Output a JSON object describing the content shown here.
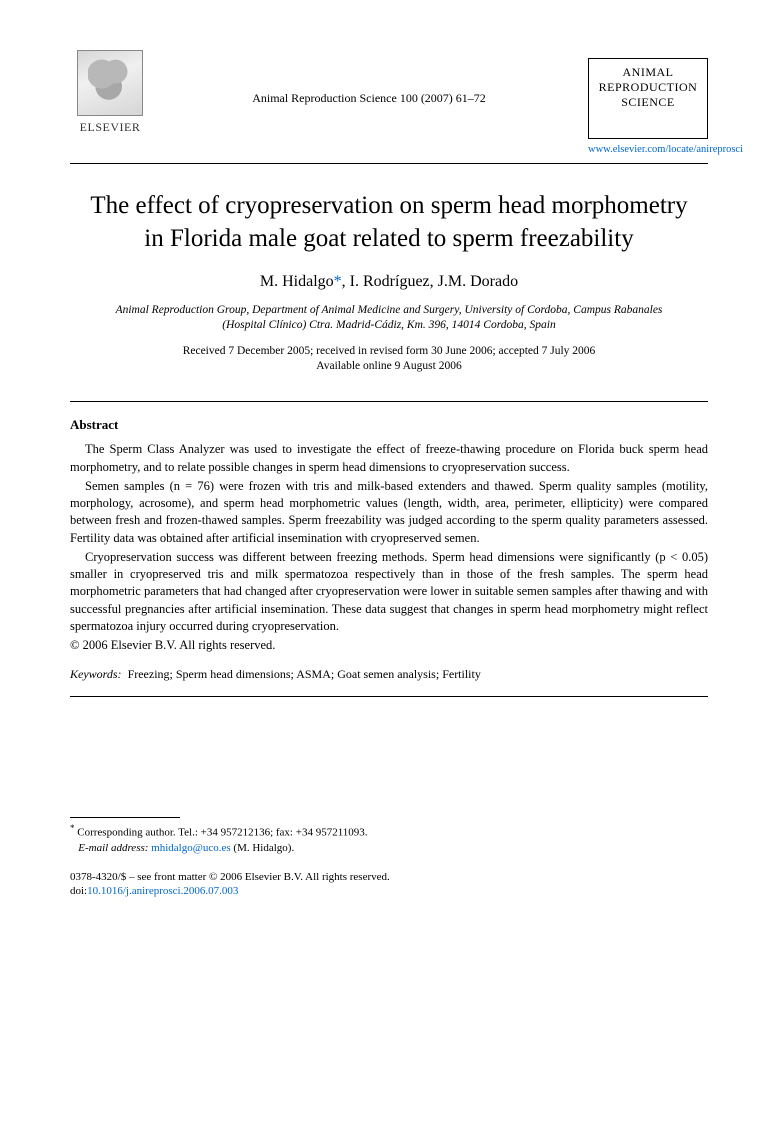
{
  "publisher": {
    "logo_label": "ELSEVIER"
  },
  "journal_ref": "Animal Reproduction Science 100 (2007) 61–72",
  "journal_box": {
    "line1": "ANIMAL",
    "line2": "REPRODUCTION",
    "line3": "SCIENCE"
  },
  "journal_url": "www.elsevier.com/locate/anireprosci",
  "title": "The effect of cryopreservation on sperm head morphometry in Florida male goat related to sperm freezability",
  "authors_html": "M. Hidalgo *, I. Rodríguez, J.M. Dorado",
  "authors": {
    "a1": "M. Hidalgo",
    "star": "*",
    "a2": "I. Rodríguez",
    "a3": "J.M. Dorado"
  },
  "affiliation": "Animal Reproduction Group, Department of Animal Medicine and Surgery, University of Cordoba, Campus Rabanales (Hospital Clínico) Ctra. Madrid-Cádiz, Km. 396, 14014 Cordoba, Spain",
  "dates": {
    "line1": "Received 7 December 2005; received in revised form 30 June 2006; accepted 7 July 2006",
    "line2": "Available online 9 August 2006"
  },
  "abstract": {
    "heading": "Abstract",
    "p1": "The Sperm Class Analyzer was used to investigate the effect of freeze-thawing procedure on Florida buck sperm head morphometry, and to relate possible changes in sperm head dimensions to cryopreservation success.",
    "p2": "Semen samples (n = 76) were frozen with tris and milk-based extenders and thawed. Sperm quality samples (motility, morphology, acrosome), and sperm head morphometric values (length, width, area, perimeter, ellipticity) were compared between fresh and frozen-thawed samples. Sperm freezability was judged according to the sperm quality parameters assessed. Fertility data was obtained after artificial insemination with cryopreserved semen.",
    "p3": "Cryopreservation success was different between freezing methods. Sperm head dimensions were significantly (p < 0.05) smaller in cryopreserved tris and milk spermatozoa respectively than in those of the fresh samples. The sperm head morphometric parameters that had changed after cryopreservation were lower in suitable semen samples after thawing and with successful pregnancies after artificial insemination. These data suggest that changes in sperm head morphometry might reflect spermatozoa injury occurred during cryopreservation.",
    "copyright": "© 2006 Elsevier B.V. All rights reserved."
  },
  "keywords": {
    "label": "Keywords:",
    "text": "Freezing; Sperm head dimensions; ASMA; Goat semen analysis; Fertility"
  },
  "footnote": {
    "corresponding": "Corresponding author. Tel.: +34 957212136; fax: +34 957211093.",
    "email_label": "E-mail address:",
    "email": "mhidalgo@uco.es",
    "email_tail": "(M. Hidalgo)."
  },
  "issn": {
    "line1": "0378-4320/$ – see front matter © 2006 Elsevier B.V. All rights reserved.",
    "doi_label": "doi:",
    "doi": "10.1016/j.anireprosci.2006.07.003"
  }
}
